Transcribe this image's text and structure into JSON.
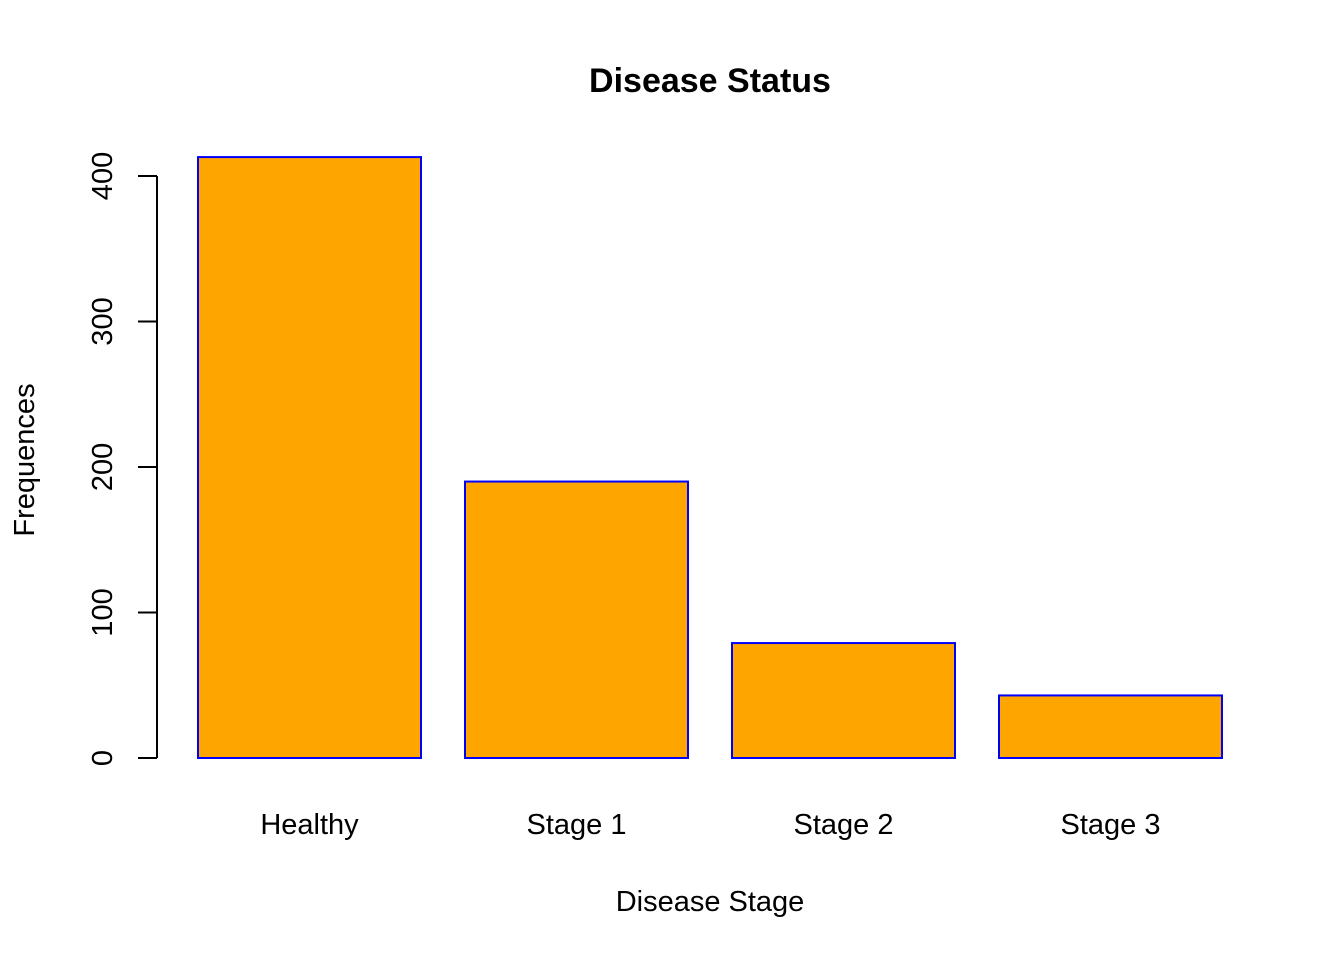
{
  "chart_data": {
    "type": "bar",
    "title": "Disease Status",
    "xlabel": "Disease Stage",
    "ylabel": "Frequences",
    "categories": [
      "Healthy",
      "Stage 1",
      "Stage 2",
      "Stage 3"
    ],
    "values": [
      413,
      190,
      79,
      43
    ],
    "ylim": [
      0,
      400
    ],
    "yticks": [
      "0",
      "100",
      "200",
      "300",
      "400"
    ],
    "grid": false,
    "colors": {
      "bar_fill": "#FFA500",
      "bar_border": "#0000FF",
      "axis": "#000000",
      "text": "#000000"
    }
  }
}
